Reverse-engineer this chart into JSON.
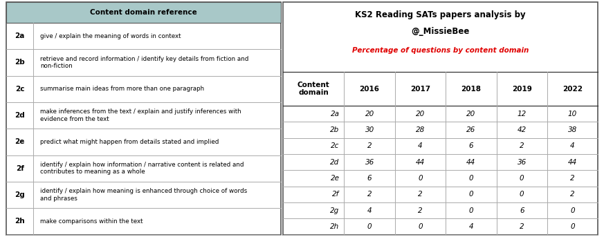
{
  "left_table": {
    "header": "Content domain reference",
    "header_bg": "#a8c8c8",
    "rows": [
      {
        "code": "2a",
        "desc": "give / explain the meaning of words in context"
      },
      {
        "code": "2b",
        "desc": "retrieve and record information / identify key details from fiction and\nnon-fiction"
      },
      {
        "code": "2c",
        "desc": "summarise main ideas from more than one paragraph"
      },
      {
        "code": "2d",
        "desc": "make inferences from the text / explain and justify inferences with\nevidence from the text"
      },
      {
        "code": "2e",
        "desc": "predict what might happen from details stated and implied"
      },
      {
        "code": "2f",
        "desc": "identify / explain how information / narrative content is related and\ncontributes to meaning as a whole"
      },
      {
        "code": "2g",
        "desc": "identify / explain how meaning is enhanced through choice of words\nand phrases"
      },
      {
        "code": "2h",
        "desc": "make comparisons within the text"
      }
    ]
  },
  "right_table": {
    "title1": "KS2 Reading SATs papers analysis by",
    "title2": "@_MissieBee",
    "subtitle": "Percentage of questions by content domain",
    "subtitle_color": "#e00000",
    "columns": [
      "Content\ndomain",
      "2016",
      "2017",
      "2018",
      "2019",
      "2022"
    ],
    "rows": [
      {
        "code": "2a",
        "values": [
          20,
          20,
          20,
          12,
          10
        ]
      },
      {
        "code": "2b",
        "values": [
          30,
          28,
          26,
          42,
          38
        ]
      },
      {
        "code": "2c",
        "values": [
          2,
          4,
          6,
          2,
          4
        ]
      },
      {
        "code": "2d",
        "values": [
          36,
          44,
          44,
          36,
          44
        ]
      },
      {
        "code": "2e",
        "values": [
          6,
          0,
          0,
          0,
          2
        ]
      },
      {
        "code": "2f",
        "values": [
          2,
          2,
          0,
          0,
          2
        ]
      },
      {
        "code": "2g",
        "values": [
          4,
          2,
          0,
          6,
          0
        ]
      },
      {
        "code": "2h",
        "values": [
          0,
          0,
          4,
          2,
          0
        ]
      }
    ]
  },
  "outer_bg": "#ffffff",
  "row_line_color": "#aaaaaa",
  "strong_line_color": "#555555"
}
